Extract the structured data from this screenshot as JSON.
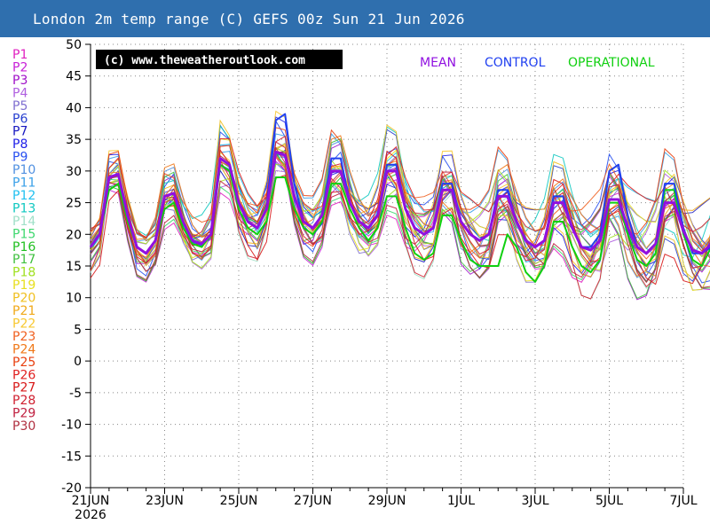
{
  "title": "London 2m temp range (C) GEFS 00z Sun 21 Jun 2026",
  "copyright": "(c) www.theweatheroutlook.com",
  "year_label": "2026",
  "members": [
    {
      "label": "P1",
      "color": "#e020c0"
    },
    {
      "label": "P2",
      "color": "#c820d8"
    },
    {
      "label": "P3",
      "color": "#a010c8"
    },
    {
      "label": "P4",
      "color": "#b060e0"
    },
    {
      "label": "P5",
      "color": "#8070d0"
    },
    {
      "label": "P6",
      "color": "#2840d0"
    },
    {
      "label": "P7",
      "color": "#1818c0"
    },
    {
      "label": "P8",
      "color": "#2020e8"
    },
    {
      "label": "P9",
      "color": "#2850f0"
    },
    {
      "label": "P10",
      "color": "#5090e0"
    },
    {
      "label": "P11",
      "color": "#3aa0e8"
    },
    {
      "label": "P12",
      "color": "#20c0f0"
    },
    {
      "label": "P13",
      "color": "#10c8c0"
    },
    {
      "label": "P14",
      "color": "#a0e0c8"
    },
    {
      "label": "P15",
      "color": "#40d870"
    },
    {
      "label": "P16",
      "color": "#20c020"
    },
    {
      "label": "P17",
      "color": "#40c040"
    },
    {
      "label": "P18",
      "color": "#a0e020"
    },
    {
      "label": "P19",
      "color": "#e8e020"
    },
    {
      "label": "P20",
      "color": "#f0c020"
    },
    {
      "label": "P21",
      "color": "#f0a818"
    },
    {
      "label": "P22",
      "color": "#f8c830"
    },
    {
      "label": "P23",
      "color": "#f06020"
    },
    {
      "label": "P24",
      "color": "#f07818"
    },
    {
      "label": "P25",
      "color": "#e84010"
    },
    {
      "label": "P26",
      "color": "#e02020"
    },
    {
      "label": "P27",
      "color": "#d81818"
    },
    {
      "label": "P28",
      "color": "#d02030"
    },
    {
      "label": "P29",
      "color": "#c02040"
    },
    {
      "label": "P30",
      "color": "#b03040"
    }
  ],
  "legend": [
    {
      "label": "MEAN",
      "color": "#9010e0"
    },
    {
      "label": "CONTROL",
      "color": "#2040f0"
    },
    {
      "label": "OPERATIONAL",
      "color": "#10d010"
    }
  ],
  "chart_data": {
    "type": "line",
    "title": "London 2m temp range (C) GEFS 00z Sun 21 Jun 2026",
    "xlabel": "",
    "ylabel": "",
    "x_ticks": [
      "21JUN",
      "23JUN",
      "25JUN",
      "27JUN",
      "29JUN",
      "1JUL",
      "3JUL",
      "5JUL",
      "7JUL"
    ],
    "y_ticks": [
      50,
      45,
      40,
      35,
      30,
      25,
      20,
      15,
      10,
      5,
      0,
      -5,
      -10,
      -15,
      -20
    ],
    "ylim": [
      -20,
      50
    ],
    "x_range_days": [
      0,
      16
    ],
    "step_days": 0.25,
    "grid": true,
    "legend_position": "top-right",
    "series": [
      {
        "name": "MEAN",
        "color": "#9010e0",
        "width": 3,
        "values": [
          18,
          20,
          29,
          29.5,
          23,
          18,
          17,
          19,
          26,
          26.5,
          22,
          19,
          18.5,
          20,
          32,
          31,
          25,
          22,
          21,
          24,
          33,
          32.5,
          26,
          22,
          21,
          23,
          30,
          30,
          25,
          22,
          21,
          23,
          30,
          30,
          24,
          21,
          20,
          21,
          27,
          27,
          22,
          20,
          19,
          20,
          26,
          26,
          22,
          19,
          18,
          19,
          25,
          25,
          21,
          18,
          17.5,
          19,
          25.5,
          25.5,
          21,
          18,
          17,
          18.5,
          25,
          25,
          20.5,
          17.5,
          17,
          18.5,
          25,
          25,
          20.5,
          17.5,
          16.5,
          18,
          24.5,
          24.5,
          20,
          17,
          16.5,
          18,
          24.5,
          24.5,
          20,
          17,
          16,
          17.5,
          24.5,
          24.5,
          20,
          17,
          16,
          17,
          24.5,
          24.5,
          19.5,
          17.5,
          17
        ]
      },
      {
        "name": "CONTROL",
        "color": "#2040f0",
        "width": 2,
        "values": [
          18,
          20,
          29,
          29.5,
          23,
          18,
          17,
          19,
          26,
          26.5,
          22,
          19,
          18.5,
          20,
          32,
          31,
          25,
          22,
          21,
          24,
          38,
          39,
          28,
          22,
          21,
          23,
          32,
          32,
          25,
          22,
          21,
          23,
          31,
          31,
          24,
          21,
          20,
          21,
          28,
          28,
          22,
          20,
          19,
          20,
          27,
          27,
          22,
          19,
          18,
          19,
          26,
          26,
          21,
          18,
          18,
          20,
          30,
          31,
          23,
          18,
          17,
          18.5,
          28,
          28,
          21,
          17,
          17,
          18,
          25,
          25,
          20,
          17,
          16,
          18,
          28,
          29,
          22,
          17,
          16,
          18,
          27,
          27,
          20,
          17,
          16,
          17,
          24,
          24,
          19,
          17,
          15,
          16,
          26,
          27,
          20,
          17,
          16
        ]
      },
      {
        "name": "OPERATIONAL",
        "color": "#10d010",
        "width": 2,
        "values": [
          18,
          20,
          27,
          28,
          22,
          18,
          17,
          19,
          24,
          25,
          21,
          18.5,
          18,
          20,
          31,
          30,
          24,
          21,
          20,
          22,
          29,
          29,
          24,
          21,
          20,
          22,
          28,
          28,
          24,
          21,
          19,
          21,
          26,
          26,
          21,
          17,
          16,
          17,
          23,
          23,
          19,
          16,
          15,
          15,
          15,
          20,
          18,
          14,
          12.5,
          15,
          22,
          22,
          18,
          15,
          14,
          16,
          25,
          25,
          20,
          16,
          15,
          17,
          27,
          27,
          20,
          16,
          15,
          18,
          26,
          27,
          20,
          17,
          16,
          18,
          27,
          27,
          20,
          16,
          15,
          17,
          26,
          26,
          19,
          15,
          14,
          16,
          24,
          24,
          18,
          15,
          14,
          15,
          23,
          23,
          17,
          15,
          14
        ]
      }
    ]
  }
}
